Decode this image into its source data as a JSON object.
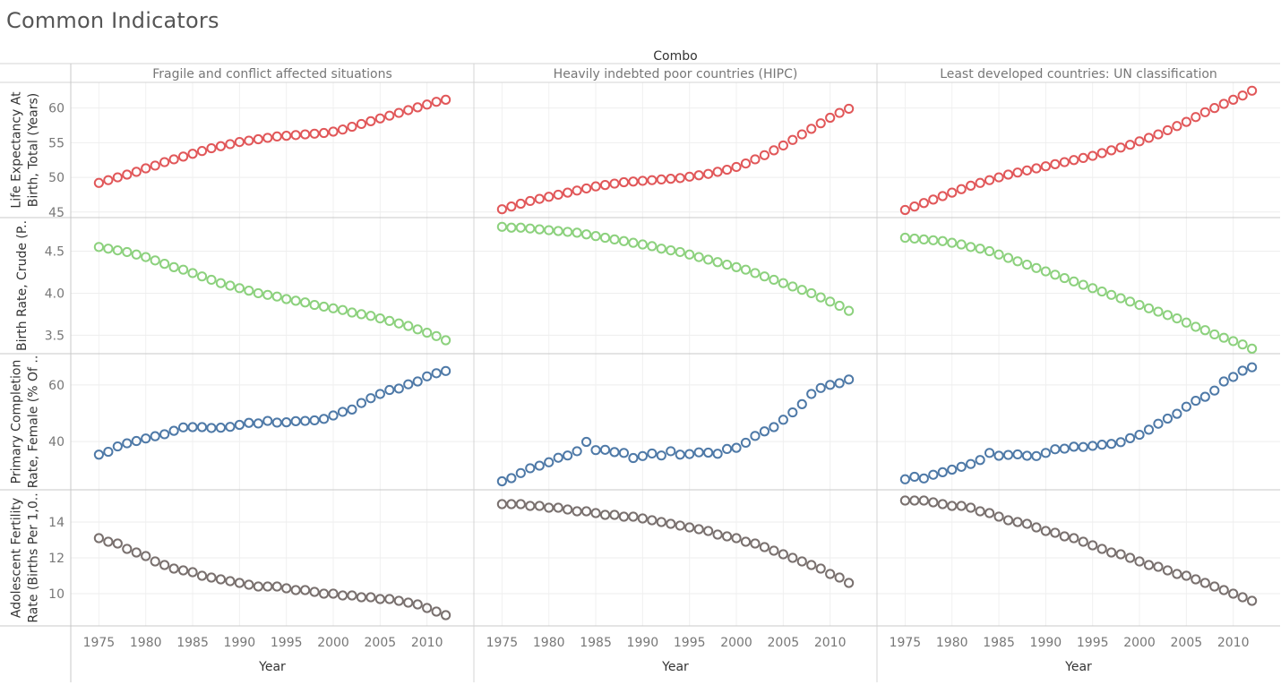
{
  "page": {
    "title": "Common Indicators"
  },
  "chart_data": {
    "type": "scatter",
    "title": "Common Indicators",
    "column_field_label": "Combo",
    "columns": [
      "Fragile and conflict affected situations",
      "Heavily indebted poor countries (HIPC)",
      "Least developed countries: UN classification"
    ],
    "xlabel": "Year",
    "xlim": [
      1972,
      2015
    ],
    "xticks": [
      1975,
      1980,
      1985,
      1990,
      1995,
      2000,
      2005,
      2010
    ],
    "x": [
      1975,
      1976,
      1977,
      1978,
      1979,
      1980,
      1981,
      1982,
      1983,
      1984,
      1985,
      1986,
      1987,
      1988,
      1989,
      1990,
      1991,
      1992,
      1993,
      1994,
      1995,
      1996,
      1997,
      1998,
      1999,
      2000,
      2001,
      2002,
      2003,
      2004,
      2005,
      2006,
      2007,
      2008,
      2009,
      2010,
      2011,
      2012
    ],
    "rows": [
      {
        "label_lines": [
          "Life Expectancy At",
          "Birth, Total (Years)"
        ],
        "color": "#e15759",
        "ylim": [
          44.2,
          63.7
        ],
        "yticks": [
          45,
          50,
          55,
          60
        ],
        "series": [
          [
            49.2,
            49.6,
            50.0,
            50.4,
            50.8,
            51.3,
            51.7,
            52.2,
            52.6,
            53.0,
            53.4,
            53.8,
            54.2,
            54.5,
            54.8,
            55.1,
            55.3,
            55.5,
            55.7,
            55.9,
            56.0,
            56.1,
            56.2,
            56.3,
            56.4,
            56.6,
            56.9,
            57.3,
            57.7,
            58.1,
            58.5,
            58.9,
            59.3,
            59.7,
            60.1,
            60.5,
            60.9,
            61.2
          ],
          [
            45.4,
            45.8,
            46.2,
            46.6,
            46.9,
            47.2,
            47.5,
            47.8,
            48.1,
            48.4,
            48.7,
            48.9,
            49.1,
            49.3,
            49.4,
            49.5,
            49.6,
            49.7,
            49.8,
            49.9,
            50.1,
            50.3,
            50.5,
            50.8,
            51.1,
            51.5,
            52.0,
            52.6,
            53.2,
            53.9,
            54.6,
            55.4,
            56.2,
            57.0,
            57.8,
            58.6,
            59.3,
            59.9
          ],
          [
            45.3,
            45.8,
            46.3,
            46.8,
            47.3,
            47.8,
            48.3,
            48.8,
            49.2,
            49.6,
            50.0,
            50.4,
            50.7,
            51.0,
            51.3,
            51.6,
            51.9,
            52.2,
            52.5,
            52.8,
            53.1,
            53.5,
            53.9,
            54.3,
            54.7,
            55.2,
            55.7,
            56.2,
            56.8,
            57.4,
            58.0,
            58.7,
            59.4,
            60.0,
            60.6,
            61.2,
            61.8,
            62.5
          ]
        ]
      },
      {
        "label_lines": [
          "Birth Rate, Crude (P.."
        ],
        "color": "#8cd17d",
        "ylim": [
          3.28,
          4.9
        ],
        "yticks": [
          3.5,
          4.0,
          4.5
        ],
        "series": [
          [
            4.55,
            4.53,
            4.51,
            4.49,
            4.46,
            4.43,
            4.39,
            4.35,
            4.31,
            4.28,
            4.24,
            4.2,
            4.16,
            4.12,
            4.09,
            4.06,
            4.03,
            4.0,
            3.98,
            3.96,
            3.93,
            3.91,
            3.89,
            3.86,
            3.84,
            3.82,
            3.8,
            3.77,
            3.75,
            3.73,
            3.7,
            3.67,
            3.64,
            3.61,
            3.57,
            3.53,
            3.49,
            3.44
          ],
          [
            4.79,
            4.78,
            4.78,
            4.77,
            4.76,
            4.75,
            4.74,
            4.73,
            4.72,
            4.7,
            4.68,
            4.66,
            4.64,
            4.62,
            4.6,
            4.58,
            4.56,
            4.53,
            4.51,
            4.49,
            4.46,
            4.43,
            4.4,
            4.37,
            4.34,
            4.31,
            4.28,
            4.24,
            4.2,
            4.16,
            4.12,
            4.08,
            4.04,
            4.0,
            3.95,
            3.9,
            3.85,
            3.79
          ],
          [
            4.66,
            4.65,
            4.64,
            4.63,
            4.62,
            4.6,
            4.58,
            4.55,
            4.53,
            4.5,
            4.46,
            4.42,
            4.38,
            4.34,
            4.3,
            4.26,
            4.22,
            4.18,
            4.14,
            4.1,
            4.06,
            4.02,
            3.98,
            3.94,
            3.9,
            3.86,
            3.82,
            3.78,
            3.74,
            3.7,
            3.65,
            3.6,
            3.56,
            3.51,
            3.47,
            3.43,
            3.39,
            3.34
          ]
        ]
      },
      {
        "label_lines": [
          "Primary Completion",
          "Rate, Female (% Of .."
        ],
        "color": "#4e79a7",
        "ylim": [
          23,
          71
        ],
        "yticks": [
          40,
          60
        ],
        "series": [
          [
            35.4,
            36.4,
            38.3,
            39.4,
            40.2,
            41.1,
            41.9,
            42.6,
            43.8,
            45.0,
            45.1,
            45.1,
            44.8,
            44.9,
            45.2,
            45.9,
            46.6,
            46.4,
            47.3,
            46.7,
            46.8,
            47.2,
            47.3,
            47.5,
            48.0,
            49.2,
            50.5,
            51.3,
            53.6,
            55.3,
            56.8,
            58.2,
            58.7,
            60.2,
            61.2,
            63.0,
            64.1,
            64.9
          ],
          [
            26.0,
            27.1,
            28.9,
            30.6,
            31.5,
            32.7,
            34.3,
            35.1,
            36.6,
            39.9,
            37.0,
            37.1,
            36.3,
            36.0,
            34.2,
            34.9,
            35.8,
            35.1,
            36.6,
            35.4,
            35.6,
            36.2,
            36.1,
            35.7,
            37.4,
            37.8,
            39.6,
            42.0,
            43.6,
            45.1,
            47.7,
            50.3,
            53.2,
            56.8,
            58.9,
            60.0,
            60.6,
            61.9
          ],
          [
            26.7,
            27.6,
            27.0,
            28.3,
            29.2,
            30.1,
            31.1,
            32.1,
            33.5,
            36.0,
            35.0,
            35.3,
            35.5,
            35.0,
            34.9,
            36.0,
            37.3,
            37.5,
            38.2,
            38.1,
            38.5,
            38.9,
            39.2,
            39.8,
            41.2,
            42.4,
            44.2,
            46.3,
            48.1,
            49.8,
            52.3,
            54.4,
            55.8,
            58.0,
            61.2,
            62.8,
            65.0,
            66.2
          ]
        ]
      },
      {
        "label_lines": [
          "Adolescent Fertility",
          "Rate (Births Per 1,0.."
        ],
        "color": "#79706e",
        "ylim": [
          8.2,
          15.8
        ],
        "yticks": [
          10,
          12,
          14
        ],
        "series": [
          [
            13.1,
            12.9,
            12.8,
            12.5,
            12.3,
            12.1,
            11.8,
            11.6,
            11.4,
            11.3,
            11.2,
            11.0,
            10.9,
            10.8,
            10.7,
            10.6,
            10.5,
            10.4,
            10.4,
            10.4,
            10.3,
            10.2,
            10.2,
            10.1,
            10.0,
            10.0,
            9.9,
            9.9,
            9.8,
            9.8,
            9.7,
            9.7,
            9.6,
            9.5,
            9.4,
            9.2,
            9.0,
            8.8
          ],
          [
            15.0,
            15.0,
            15.0,
            14.9,
            14.9,
            14.8,
            14.8,
            14.7,
            14.6,
            14.6,
            14.5,
            14.4,
            14.4,
            14.3,
            14.3,
            14.2,
            14.1,
            14.0,
            13.9,
            13.8,
            13.7,
            13.6,
            13.5,
            13.3,
            13.2,
            13.1,
            12.9,
            12.8,
            12.6,
            12.4,
            12.2,
            12.0,
            11.8,
            11.6,
            11.4,
            11.1,
            10.9,
            10.6
          ],
          [
            15.2,
            15.2,
            15.2,
            15.1,
            15.0,
            14.9,
            14.9,
            14.8,
            14.6,
            14.5,
            14.3,
            14.1,
            14.0,
            13.9,
            13.7,
            13.5,
            13.4,
            13.2,
            13.1,
            12.9,
            12.7,
            12.5,
            12.3,
            12.2,
            12.0,
            11.8,
            11.6,
            11.5,
            11.3,
            11.1,
            11.0,
            10.8,
            10.6,
            10.4,
            10.2,
            10.0,
            9.8,
            9.6
          ]
        ]
      }
    ]
  }
}
